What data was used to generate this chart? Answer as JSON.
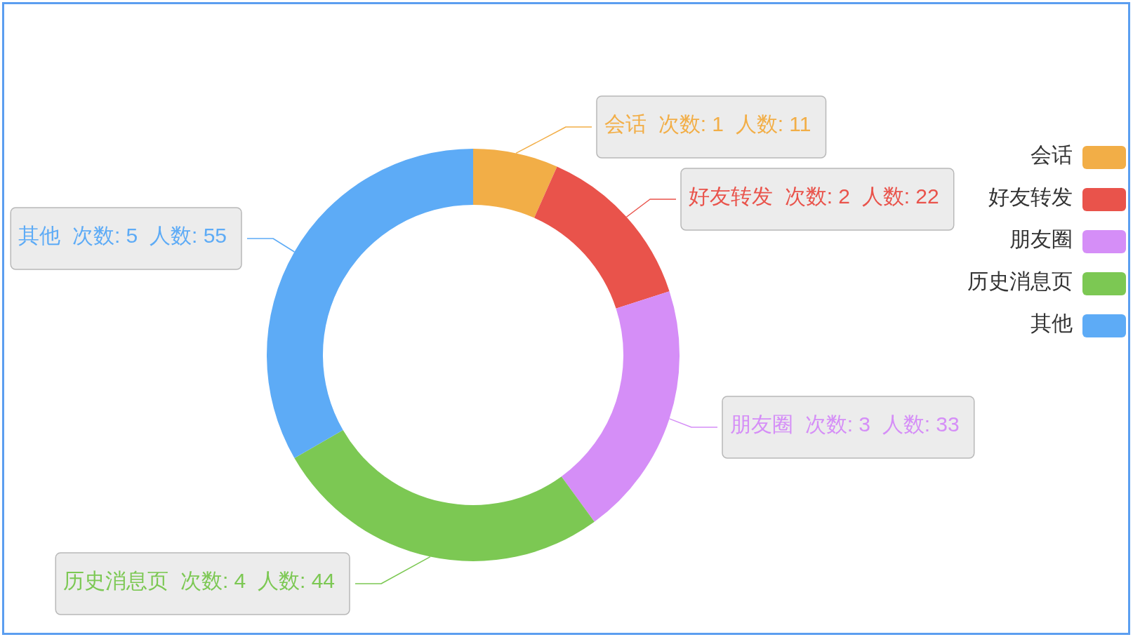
{
  "chart_data": {
    "type": "donut",
    "categories": [
      "会话",
      "好友转发",
      "朋友圈",
      "历史消息页",
      "其他"
    ],
    "values": [
      11,
      22,
      33,
      44,
      55
    ],
    "colors": [
      "#f2ae47",
      "#e9534b",
      "#d58ef7",
      "#7cc853",
      "#5dabf6"
    ],
    "value_labels": [
      "会话  次数: 1  人数: 11",
      "好友转发  次数: 2  人数: 22",
      "朋友圈  次数: 3  人数: 33",
      "历史消息页  次数: 4  人数: 44",
      "其他  次数: 5  人数: 55"
    ],
    "legend": "right"
  }
}
